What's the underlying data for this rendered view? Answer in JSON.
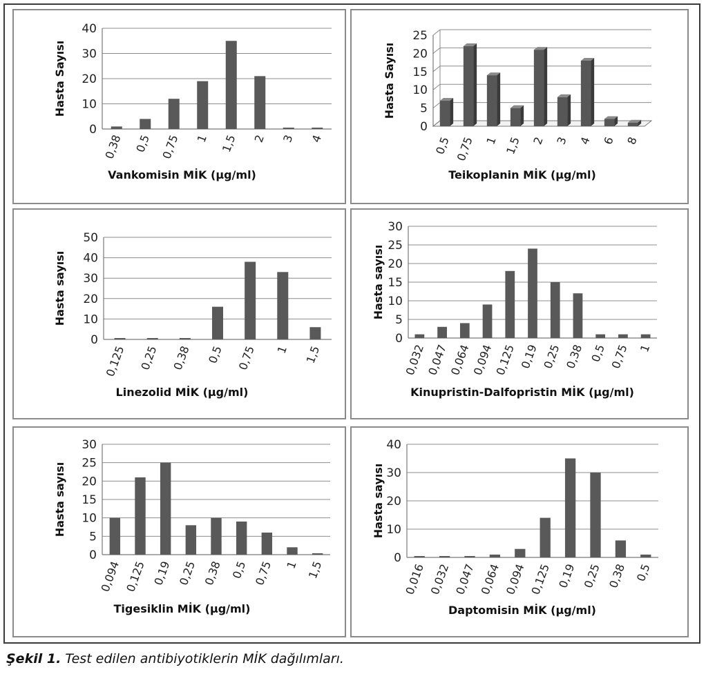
{
  "caption": {
    "label": "Şekil 1.",
    "text": "Test edilen antibiyotiklerin MİK dağılımları."
  },
  "chart_data": [
    {
      "type": "bar",
      "ylabel": "Hasta Sayısı",
      "xlabel": "Vankomisin MİK (µg/ml)",
      "categories": [
        "0,38",
        "0,5",
        "0,75",
        "1",
        "1,5",
        "2",
        "3",
        "4"
      ],
      "values": [
        1,
        4,
        12,
        19,
        35,
        21,
        0,
        0
      ],
      "ylim": [
        0,
        40
      ],
      "yticks": [
        0,
        10,
        20,
        30,
        40
      ],
      "grid": true,
      "style": "flat",
      "bar_color": "#595959"
    },
    {
      "type": "bar",
      "ylabel": "Hasta Sayısı",
      "xlabel": "Teikoplanin MİK (µg/ml)",
      "categories": [
        "0,5",
        "0,75",
        "1",
        "1,5",
        "2",
        "3",
        "4",
        "6",
        "8"
      ],
      "values": [
        7,
        22,
        14,
        5,
        21,
        8,
        18,
        2,
        1
      ],
      "ylim": [
        0,
        25
      ],
      "yticks": [
        0,
        5,
        10,
        15,
        20,
        25
      ],
      "grid": true,
      "style": "3d",
      "bar_color": "#595959"
    },
    {
      "type": "bar",
      "ylabel": "Hasta sayısı",
      "xlabel": "Linezolid MİK (µg/ml)",
      "categories": [
        "0,125",
        "0,25",
        "0,38",
        "0,5",
        "0,75",
        "1",
        "1,5"
      ],
      "values": [
        0,
        0,
        0,
        16,
        38,
        33,
        6
      ],
      "ylim": [
        0,
        50
      ],
      "yticks": [
        0,
        10,
        20,
        30,
        40,
        50
      ],
      "grid": true,
      "style": "flat",
      "bar_color": "#595959"
    },
    {
      "type": "bar",
      "ylabel": "Hasta sayısı",
      "xlabel": "Kinupristin-Dalfopristin MİK (µg/ml)",
      "categories": [
        "0,032",
        "0,047",
        "0,064",
        "0,094",
        "0,125",
        "0,19",
        "0,25",
        "0,38",
        "0,5",
        "0,75",
        "1"
      ],
      "values": [
        1,
        3,
        4,
        9,
        18,
        24,
        15,
        12,
        1,
        1,
        1
      ],
      "ylim": [
        0,
        30
      ],
      "yticks": [
        0,
        5,
        10,
        15,
        20,
        25,
        30
      ],
      "grid": true,
      "style": "flat",
      "bar_color": "#595959"
    },
    {
      "type": "bar",
      "ylabel": "Hasta sayısı",
      "xlabel": "Tigesiklin MİK (µg/ml)",
      "categories": [
        "0,094",
        "0,125",
        "0,19",
        "0,25",
        "0,38",
        "0,5",
        "0,75",
        "1",
        "1,5"
      ],
      "values": [
        10,
        21,
        25,
        8,
        10,
        9,
        6,
        2,
        0
      ],
      "ylim": [
        0,
        30
      ],
      "yticks": [
        0,
        5,
        10,
        15,
        20,
        25,
        30
      ],
      "grid": true,
      "style": "flat",
      "bar_color": "#595959"
    },
    {
      "type": "bar",
      "ylabel": "Hasta sayısı",
      "xlabel": "Daptomisin MİK (µg/ml)",
      "categories": [
        "0,016",
        "0,032",
        "0,047",
        "0,064",
        "0,094",
        "0,125",
        "0,19",
        "0,25",
        "0,38",
        "0,5"
      ],
      "values": [
        0,
        0,
        0,
        1,
        3,
        14,
        35,
        30,
        6,
        1
      ],
      "ylim": [
        0,
        40
      ],
      "yticks": [
        0,
        10,
        20,
        30,
        40
      ],
      "grid": true,
      "style": "flat",
      "bar_color": "#595959"
    }
  ]
}
